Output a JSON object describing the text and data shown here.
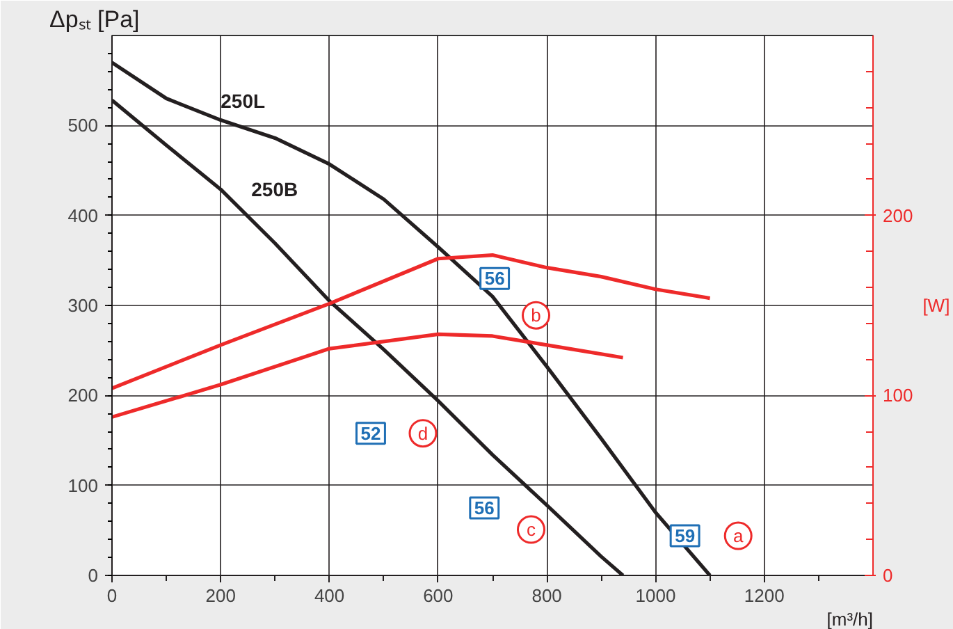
{
  "chart_data": {
    "type": "line",
    "x": [
      0,
      100,
      200,
      300,
      400,
      500,
      600,
      700,
      800,
      900,
      1000,
      1100
    ],
    "series": [
      {
        "name": "250L",
        "color": "#231f20",
        "values": [
          570,
          530,
          506,
          486,
          457,
          418,
          365,
          310,
          232,
          152,
          70,
          0
        ]
      },
      {
        "name": "250B",
        "color": "#231f20",
        "x": [
          0,
          100,
          200,
          300,
          400,
          500,
          600,
          700,
          800,
          900,
          940
        ],
        "values": [
          528,
          478,
          429,
          369,
          305,
          251,
          194,
          134,
          78,
          21,
          0
        ]
      },
      {
        "color": "#ee2a2a",
        "axis": "y2",
        "x": [
          0,
          200,
          400,
          600,
          700,
          800,
          900,
          1000,
          1100
        ],
        "values": [
          104,
          128,
          151,
          176,
          178,
          171,
          166,
          159,
          154
        ]
      },
      {
        "color": "#ee2a2a",
        "axis": "y2",
        "x": [
          0,
          200,
          400,
          600,
          700,
          800,
          940
        ],
        "values": [
          88,
          106,
          126,
          134,
          133,
          128,
          121
        ]
      }
    ],
    "ylabel": "Δpₛₜ [Pa]",
    "y2label": "[W]",
    "xlabel": "[m³/h]",
    "xlim": [
      0,
      1400
    ],
    "xticks": [
      0,
      200,
      400,
      600,
      800,
      1000,
      1200
    ],
    "ylim": [
      0,
      600
    ],
    "yticks": [
      0,
      100,
      200,
      300,
      400,
      500
    ],
    "y2lim": [
      0,
      300
    ],
    "y2ticks": [
      0,
      100,
      200
    ],
    "grid": true,
    "marker": "none",
    "line_style": "solid",
    "annotations": [
      {
        "text": "56",
        "x": 704,
        "y": 330
      },
      {
        "text": "b",
        "x": 780,
        "y": 289
      },
      {
        "text": "52",
        "x": 476,
        "y": 158
      },
      {
        "text": "d",
        "x": 572,
        "y": 158
      },
      {
        "text": "56",
        "x": 685,
        "y": 75
      },
      {
        "text": "c",
        "x": 771,
        "y": 51
      },
      {
        "text": "59",
        "x": 1054,
        "y": 44
      },
      {
        "text": "a",
        "x": 1152,
        "y": 44
      }
    ]
  }
}
